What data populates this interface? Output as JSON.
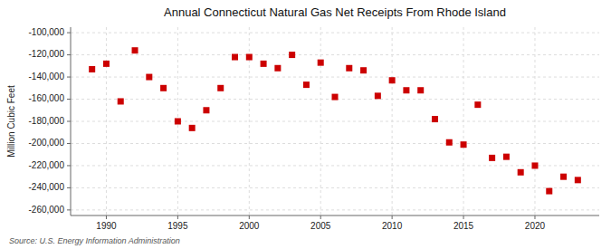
{
  "chart_data": {
    "type": "scatter",
    "title": "Annual Connecticut Natural Gas Net Receipts From Rhode Island",
    "y_label": "Million Cubic Feet",
    "annotations": [
      "Source: U.S. Energy Information Administration"
    ],
    "color": "#cc0000",
    "marker": "square",
    "grid": true,
    "xlim": [
      1987.5,
      2024.5
    ],
    "ylim": [
      -265000,
      -95000
    ],
    "xticks": [
      1990,
      1995,
      2000,
      2005,
      2010,
      2015,
      2020
    ],
    "yticks": [
      {
        "value": -260000,
        "label": "-260,000"
      },
      {
        "value": -240000,
        "label": "-240,000"
      },
      {
        "value": -220000,
        "label": "-220,000"
      },
      {
        "value": -200000,
        "label": "-200,000"
      },
      {
        "value": -180000,
        "label": "-180,000"
      },
      {
        "value": -160000,
        "label": "-160,000"
      },
      {
        "value": -140000,
        "label": "-140,000"
      },
      {
        "value": -120000,
        "label": "-120,000"
      },
      {
        "value": -100000,
        "label": "-100,000"
      }
    ],
    "x": [
      1989,
      1990,
      1991,
      1992,
      1993,
      1994,
      1995,
      1996,
      1997,
      1998,
      1999,
      2000,
      2001,
      2002,
      2003,
      2004,
      2005,
      2006,
      2007,
      2008,
      2009,
      2010,
      2011,
      2012,
      2013,
      2014,
      2015,
      2016,
      2017,
      2018,
      2019,
      2020,
      2021,
      2022,
      2023
    ],
    "values": [
      -133000,
      -128000,
      -162000,
      -116000,
      -140000,
      -150000,
      -180000,
      -186000,
      -170000,
      -150000,
      -122000,
      -122000,
      -128000,
      -132000,
      -120000,
      -147000,
      -127000,
      -158000,
      -132000,
      -134000,
      -157000,
      -143000,
      -152000,
      -152000,
      -178000,
      -199000,
      -201000,
      -165000,
      -213000,
      -212000,
      -226000,
      -220000,
      -243000,
      -230000,
      -233000
    ]
  }
}
